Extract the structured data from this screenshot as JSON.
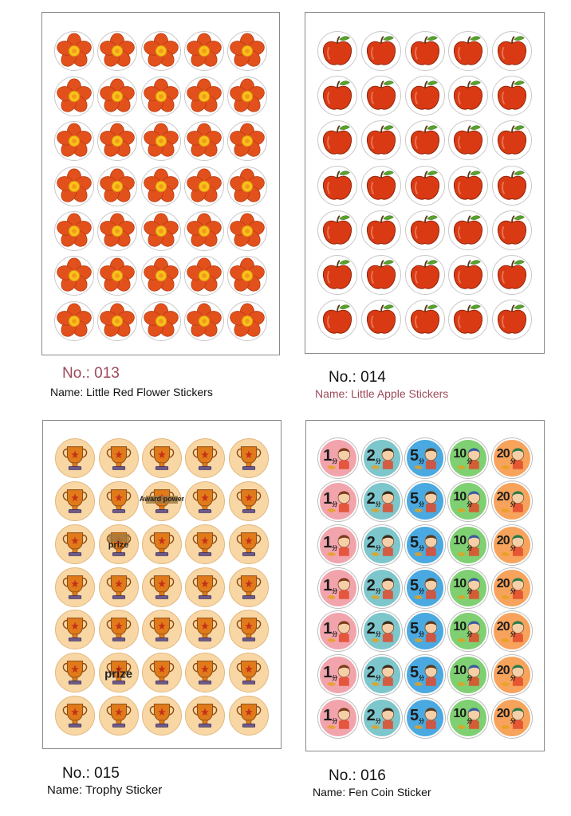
{
  "colors": {
    "flower": "#e2511c",
    "flower_center": "#f7c21a",
    "apple": "#d93a14",
    "apple_leaf": "#5aa12e",
    "trophy": "#e07a1a",
    "trophy_bg": "#f8d7a5",
    "coin_1": "#f2a4ad",
    "coin_2": "#7cc6cc",
    "coin_5": "#4aa9e0",
    "coin_10": "#7fd072",
    "coin_20": "#f7a35c",
    "caption_accent": "#9c4a5a"
  },
  "products": [
    {
      "no": "No.: 013",
      "name": "Name: Little Red Flower Stickers",
      "icon": "flower-icon",
      "rows": 7,
      "cols": 5
    },
    {
      "no": "No.: 014",
      "name": "Name: Little Apple Stickers",
      "icon": "apple-icon",
      "rows": 7,
      "cols": 5
    },
    {
      "no": "No.: 015",
      "name": "Name: Trophy Sticker",
      "icon": "trophy-icon",
      "rows": 7,
      "cols": 5,
      "overlays": [
        {
          "row": 2,
          "col": 3,
          "text": "Award power"
        },
        {
          "row": 3,
          "col": 2,
          "text": "prize"
        },
        {
          "row": 6,
          "col": 2,
          "text": "prize"
        }
      ]
    },
    {
      "no": "No.: 016",
      "name": "Name: Fen Coin Sticker",
      "icon": "coin-icon",
      "rows": 7,
      "cols": 5,
      "coin_values": [
        "1",
        "2",
        "5",
        "10",
        "20"
      ],
      "coin_unit": "分"
    }
  ]
}
